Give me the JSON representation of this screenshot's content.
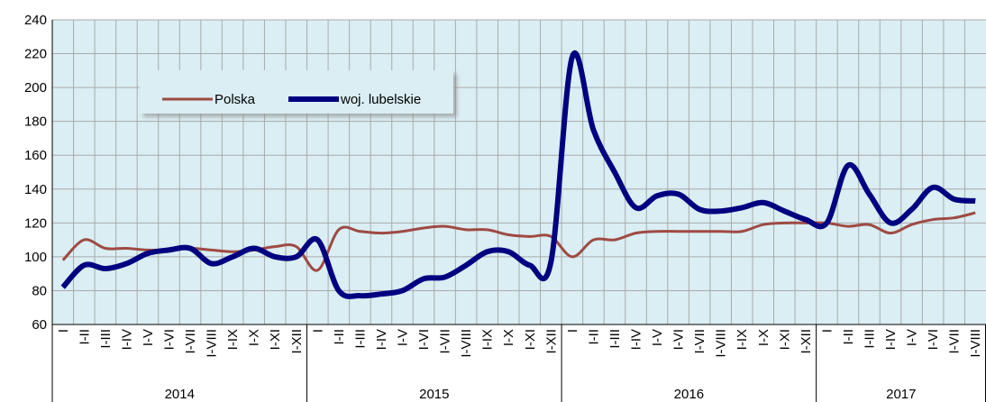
{
  "chart_data": {
    "type": "line",
    "categories": [
      "I",
      "I-II",
      "I-III",
      "I-IV",
      "I-V",
      "I-VI",
      "I-VII",
      "I-VIII",
      "I-IX",
      "I-X",
      "I-XI",
      "I-XII",
      "I",
      "I-II",
      "I-III",
      "I-IV",
      "I-V",
      "I-VI",
      "I-VII",
      "I-VIII",
      "I-IX",
      "I-X",
      "I-XI",
      "I-XII",
      "I",
      "I-II",
      "I-III",
      "I-IV",
      "I-V",
      "I-VI",
      "I-VII",
      "I-VIII",
      "I-IX",
      "I-X",
      "I-XI",
      "I-XII",
      "I",
      "I-II",
      "I-III",
      "I-IV",
      "I-V",
      "I-VI",
      "I-VII",
      "I-VIII"
    ],
    "years": [
      "2014",
      "2015",
      "2016",
      "2017"
    ],
    "series": [
      {
        "name": "Polska",
        "color": "#9e4a43",
        "values": [
          98,
          110,
          105,
          105,
          104,
          104,
          105,
          104,
          103,
          104,
          106,
          106,
          92,
          116,
          115,
          114,
          115,
          117,
          118,
          116,
          116,
          113,
          112,
          112,
          100,
          110,
          110,
          114,
          115,
          115,
          115,
          115,
          115,
          119,
          120,
          120,
          120,
          118,
          119,
          114,
          119,
          122,
          123,
          126
        ]
      },
      {
        "name": "woj. lubelskie",
        "color": "#000080",
        "values": [
          82,
          95,
          93,
          96,
          102,
          104,
          105,
          96,
          100,
          105,
          100,
          100,
          110,
          80,
          77,
          78,
          80,
          87,
          88,
          95,
          103,
          103,
          95,
          97,
          218,
          175,
          150,
          129,
          136,
          137,
          128,
          127,
          129,
          132,
          127,
          122,
          120,
          154,
          137,
          120,
          128,
          141,
          134,
          133
        ]
      }
    ],
    "ylim": [
      60,
      240
    ],
    "yticks": [
      60,
      80,
      100,
      120,
      140,
      160,
      180,
      200,
      220,
      240
    ],
    "grid": true
  }
}
